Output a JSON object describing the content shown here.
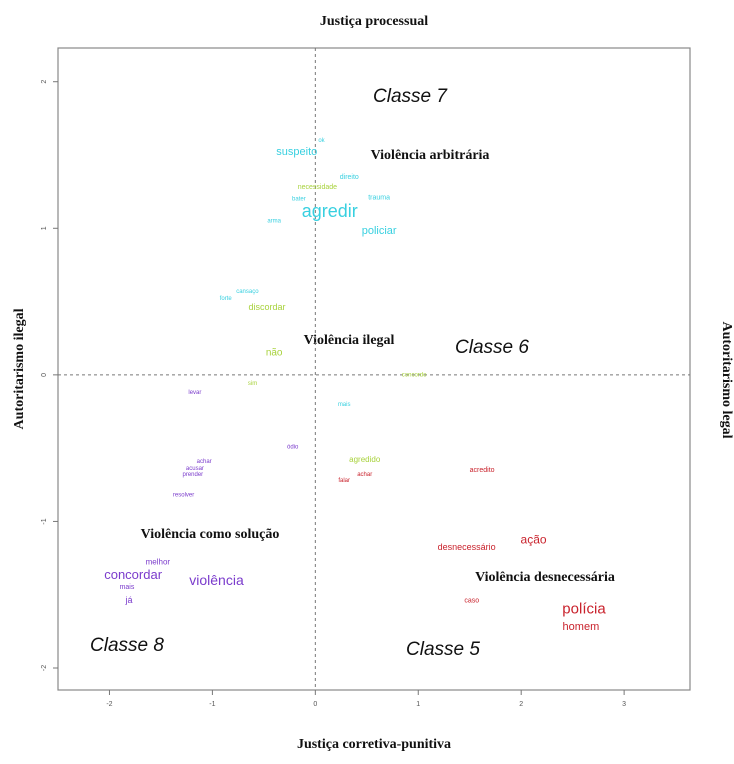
{
  "chart_data": {
    "type": "scatter",
    "title": "Justiça processual",
    "x_label": "Justiça corretiva-punitiva",
    "y_label": "Autoritarismo ilegal",
    "y2_label": "Autoritarismo legal",
    "xlim": [
      -2.5,
      3.64
    ],
    "ylim": [
      -2.15,
      2.23
    ],
    "xticks": [
      -2,
      -1,
      0,
      1,
      2,
      3
    ],
    "yticks": [
      -2,
      -1,
      0,
      1,
      2
    ],
    "hlines": [
      0
    ],
    "vlines": [
      0
    ],
    "annotations": [
      "Classe 7",
      "Classe 6",
      "Classe 5",
      "Classe 8",
      "Violência arbitrária",
      "Violência ilegal",
      "Violência como solução",
      "Violência desnecessária"
    ],
    "series": [
      {
        "color": "#38d0e0",
        "labels": [
          "ok",
          "suspeito",
          "direito",
          "bater",
          "trauma",
          "agredir",
          "arma",
          "policiar",
          "cansaço",
          "forte",
          "mais"
        ],
        "x": [
          0.06,
          -0.18,
          0.33,
          -0.16,
          0.62,
          0.14,
          -0.4,
          0.62,
          -0.66,
          -0.87,
          0.28
        ],
        "values": [
          1.6,
          1.52,
          1.35,
          1.2,
          1.21,
          1.11,
          1.05,
          0.98,
          0.57,
          0.52,
          -0.2
        ],
        "sizes": [
          6,
          11,
          7,
          6,
          7,
          18,
          6,
          11,
          6,
          6,
          6
        ]
      },
      {
        "color": "#a8d23c",
        "labels": [
          "necessidade",
          "discordar",
          "não",
          "sim",
          "concordo",
          "agredido"
        ],
        "x": [
          0.02,
          -0.47,
          -0.4,
          -0.61,
          0.96,
          0.48
        ],
        "values": [
          1.28,
          0.46,
          0.15,
          -0.06,
          0.0,
          -0.58
        ],
        "sizes": [
          7,
          9,
          10,
          6,
          6,
          8
        ]
      },
      {
        "color": "#7b3ccc",
        "labels": [
          "levar",
          "ódio",
          "achar",
          "acusar",
          "prender",
          "resolver",
          "melhor",
          "concordar",
          "mais",
          "já",
          "violência"
        ],
        "x": [
          -1.17,
          -0.22,
          -1.08,
          -1.17,
          -1.19,
          -1.28,
          -1.53,
          -1.77,
          -1.83,
          -1.81,
          -0.96
        ],
        "values": [
          -0.12,
          -0.49,
          -0.59,
          -0.64,
          -0.68,
          -0.82,
          -1.28,
          -1.37,
          -1.45,
          -1.54,
          -1.41
        ],
        "sizes": [
          6,
          6,
          6,
          6,
          6,
          6,
          8,
          13,
          7,
          9,
          14
        ]
      },
      {
        "color": "#c9222c",
        "labels": [
          "acredito",
          "achar",
          "falar",
          "desnecessário",
          "ação",
          "caso",
          "polícia",
          "homem"
        ],
        "x": [
          1.62,
          0.48,
          0.28,
          1.47,
          2.12,
          1.52,
          2.61,
          2.58
        ],
        "values": [
          -0.65,
          -0.68,
          -0.72,
          -1.18,
          -1.13,
          -1.54,
          -1.6,
          -1.72
        ],
        "sizes": [
          7,
          6,
          6,
          9,
          12,
          7,
          15,
          11
        ]
      }
    ]
  }
}
